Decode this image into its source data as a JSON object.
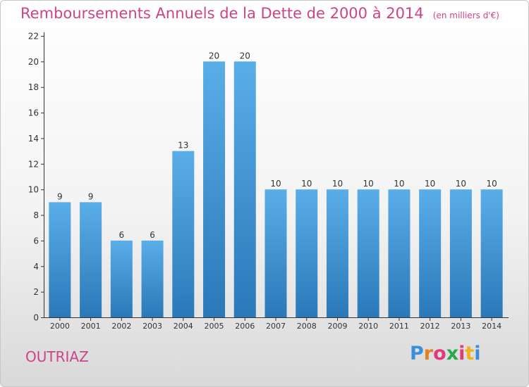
{
  "header": {
    "title": "Remboursements Annuels de la Dette de 2000 à 2014",
    "unit": "(en milliers d'€)"
  },
  "footer": {
    "commune": "OUTRIAZ",
    "logo": "Proxiti"
  },
  "colors": {
    "title": "#cc4488",
    "bar_top": "#5aaee8",
    "bar_bottom": "#2a78b8",
    "logo": [
      "#3a8fd8",
      "#e67e22",
      "#e03a7a",
      "#2aa84a",
      "#e03a7a",
      "#f0b020",
      "#3a8fd8"
    ]
  },
  "chart_data": {
    "type": "bar",
    "title": "Remboursements Annuels de la Dette de 2000 à 2014",
    "xlabel": "",
    "ylabel": "",
    "categories": [
      "2000",
      "2001",
      "2002",
      "2003",
      "2004",
      "2005",
      "2006",
      "2007",
      "2008",
      "2009",
      "2010",
      "2011",
      "2012",
      "2013",
      "2014"
    ],
    "values": [
      9,
      9,
      6,
      6,
      13,
      20,
      20,
      10,
      10,
      10,
      10,
      10,
      10,
      10,
      10
    ],
    "ylim": [
      0,
      22
    ],
    "yticks": [
      0,
      2,
      4,
      6,
      8,
      10,
      12,
      14,
      16,
      18,
      20,
      22
    ],
    "grid": false
  }
}
